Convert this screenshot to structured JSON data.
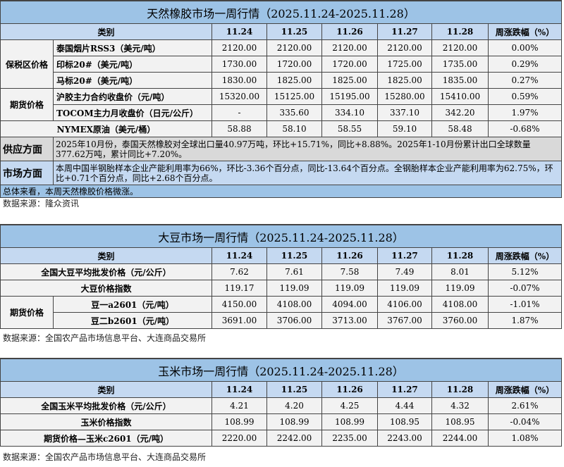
{
  "rubber": {
    "title": "天然橡胶市场一周行情（2025.11.24-2025.11.28）",
    "header": [
      "类别",
      "11.24",
      "11.25",
      "11.26",
      "11.27",
      "11.28",
      "周涨跌幅（%）"
    ],
    "groups": {
      "bonded": "保税区价格",
      "futures": "期货价格"
    },
    "rows": [
      {
        "label": "泰国烟片RSS3（美元/吨）",
        "values": [
          "2120.00",
          "2120.00",
          "2120.00",
          "2120.00",
          "2120.00",
          "0.00%"
        ]
      },
      {
        "label": "印标20#（美元/吨）",
        "values": [
          "1730.00",
          "1720.00",
          "1720.00",
          "1725.00",
          "1735.00",
          "0.29%"
        ]
      },
      {
        "label": "马标20#（美元/吨）",
        "values": [
          "1830.00",
          "1825.00",
          "1825.00",
          "1825.00",
          "1835.00",
          "0.27%"
        ]
      },
      {
        "label": "沪胶主力合约收盘价（元/吨）",
        "values": [
          "15320.00",
          "15125.00",
          "15195.00",
          "15280.00",
          "15410.00",
          "0.59%"
        ]
      },
      {
        "label": "TOCOM主力月收盘价（日元/公斤）",
        "values": [
          "-",
          "335.60",
          "334.10",
          "337.10",
          "342.20",
          "1.97%"
        ]
      },
      {
        "label": "NYMEX原油（美元/桶）",
        "values": [
          "58.88",
          "58.10",
          "58.55",
          "59.10",
          "58.48",
          "-0.68%"
        ]
      }
    ],
    "supply": {
      "label": "供应方面",
      "text": "2025年10月份，泰国天然橡胶对全球出口量40.97万吨，环比+15.71%，同比+8.88%。2025年1-10月份累计出口全球数量377.62万吨，累计同比+7.20%。"
    },
    "market": {
      "label": "市场方面",
      "text": "本周中国半钢胎样本企业产能利用率为66%，环比-3.36个百分点，同比-13.64个百分点。全钢胎样本企业产能利用率为62.75%，环比+0.71个百分点，同比+2.68个百分点。"
    },
    "summary": "总体来看，本周天然橡胶价格微涨。",
    "source": "数据来源：隆众资讯"
  },
  "soybean": {
    "title": "大豆市场一周行情（2025.11.24-2025.11.28）",
    "header": [
      "类别",
      "11.24",
      "11.25",
      "11.26",
      "11.27",
      "11.28",
      "周涨跌幅（%）"
    ],
    "futures_group": "期货价格",
    "rows": [
      {
        "label": "全国大豆平均批发价格（元/公斤）",
        "values": [
          "7.62",
          "7.61",
          "7.58",
          "7.49",
          "8.01",
          "5.12%"
        ]
      },
      {
        "label": "大豆价格指数",
        "values": [
          "119.17",
          "119.09",
          "119.09",
          "119.09",
          "119.09",
          "-0.07%"
        ]
      },
      {
        "label": "豆一a2601（元/吨）",
        "values": [
          "4150.00",
          "4108.00",
          "4094.00",
          "4106.00",
          "4108.00",
          "-1.01%"
        ]
      },
      {
        "label": "豆二b2601（元/吨）",
        "values": [
          "3691.00",
          "3706.00",
          "3713.00",
          "3767.00",
          "3760.00",
          "1.87%"
        ]
      }
    ],
    "source": "数据来源：全国农产品市场信息平台、大连商品交易所"
  },
  "corn": {
    "title": "玉米市场一周行情（2025.11.24-2025.11.28）",
    "header": [
      "类别",
      "11.24",
      "11.25",
      "11.26",
      "11.27",
      "11.28",
      "周涨跌幅（%）"
    ],
    "rows": [
      {
        "label": "全国玉米平均批发价格（元/公斤）",
        "values": [
          "4.21",
          "4.20",
          "4.25",
          "4.44",
          "4.32",
          "2.61%"
        ]
      },
      {
        "label": "玉米价格指数",
        "values": [
          "108.99",
          "108.99",
          "108.99",
          "108.95",
          "108.95",
          "-0.04%"
        ]
      },
      {
        "label": "期货价格—玉米c2601（元/吨）",
        "values": [
          "2220.00",
          "2242.00",
          "2235.00",
          "2243.00",
          "2244.00",
          "1.08%"
        ]
      }
    ],
    "source": "数据来源：全国农产品市场信息平台、大连商品交易所"
  }
}
